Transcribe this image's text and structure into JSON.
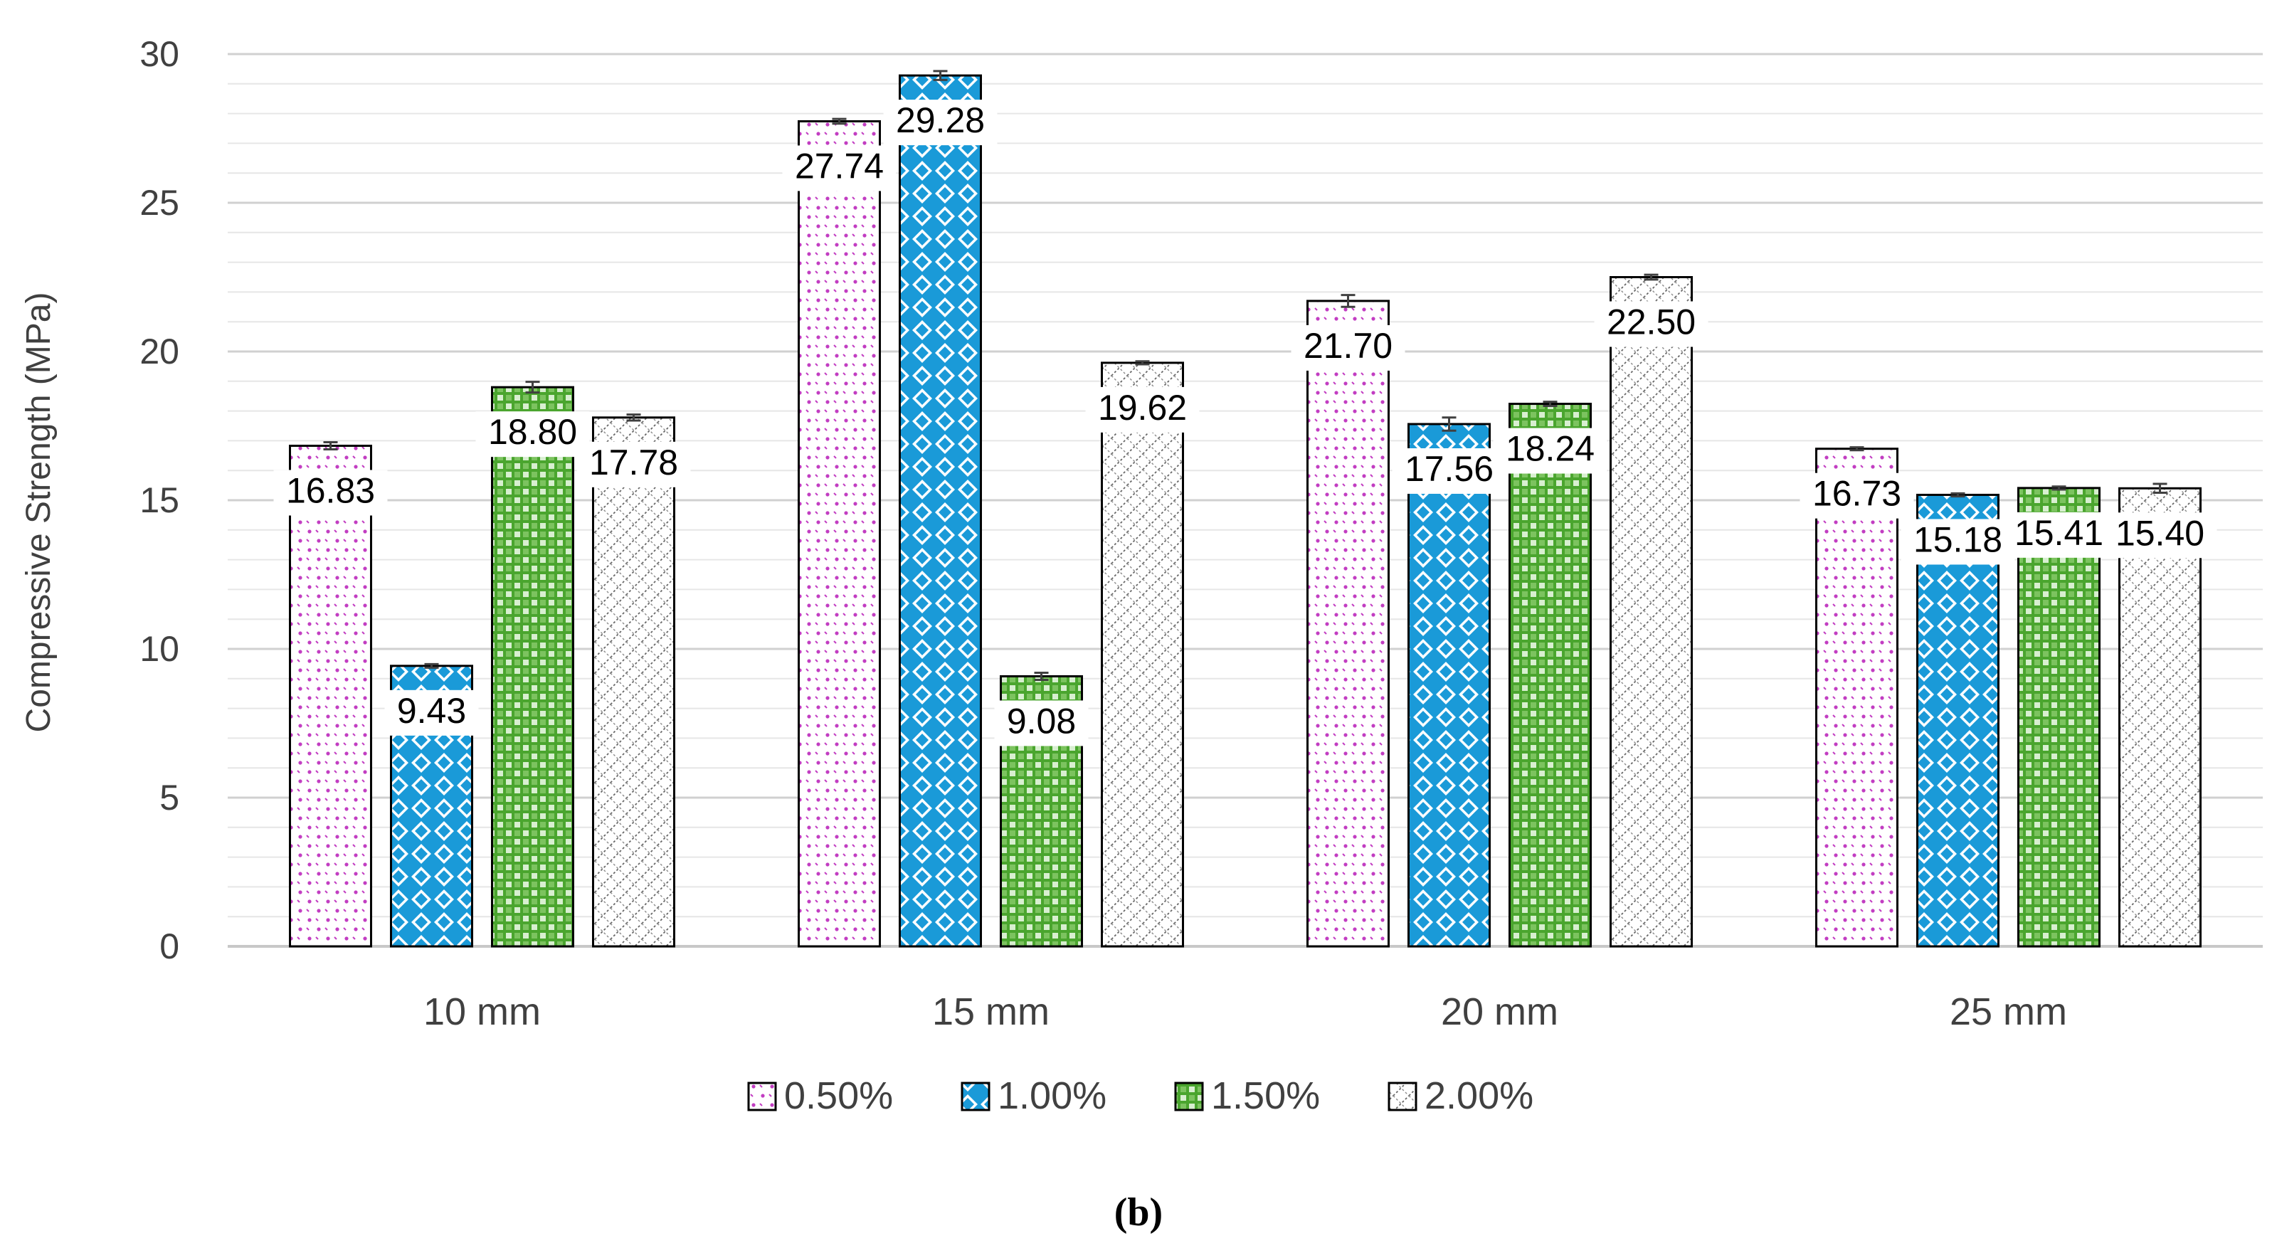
{
  "chart_data": {
    "type": "bar",
    "title": "",
    "panel_label": "(b)",
    "xlabel": "",
    "ylabel": "Compressive Strength (MPa)",
    "ylim": [
      0,
      30
    ],
    "major_ticks": [
      0,
      5,
      10,
      15,
      20,
      25,
      30
    ],
    "minor_step": 1,
    "grid": true,
    "legend_position": "bottom",
    "categories": [
      "10 mm",
      "15 mm",
      "20 mm",
      "25 mm"
    ],
    "series": [
      {
        "name": "0.50%",
        "values": [
          16.83,
          27.74,
          21.7,
          16.73
        ],
        "labels": [
          "16.83",
          "27.74",
          "21.70",
          "16.73"
        ],
        "errors": [
          0.12,
          0.08,
          0.2,
          0.05
        ],
        "color": "#c23dc2",
        "pattern": "dots"
      },
      {
        "name": "1.00%",
        "values": [
          9.43,
          29.28,
          17.56,
          15.18
        ],
        "labels": [
          "9.43",
          "29.28",
          "17.56",
          "15.18"
        ],
        "errors": [
          0.06,
          0.15,
          0.22,
          0.05
        ],
        "color": "#1a9ad8",
        "pattern": "diamond"
      },
      {
        "name": "1.50%",
        "values": [
          18.8,
          9.08,
          18.24,
          15.41
        ],
        "labels": [
          "18.80",
          "9.08",
          "18.24",
          "15.41"
        ],
        "errors": [
          0.18,
          0.12,
          0.07,
          0.05
        ],
        "color": "#4aa52e",
        "pattern": "checker"
      },
      {
        "name": "2.00%",
        "values": [
          17.78,
          19.62,
          22.5,
          15.4
        ],
        "labels": [
          "17.78",
          "19.62",
          "22.50",
          "15.40"
        ],
        "errors": [
          0.1,
          0.05,
          0.08,
          0.15
        ],
        "color": "#777777",
        "pattern": "crosshatch"
      }
    ]
  }
}
